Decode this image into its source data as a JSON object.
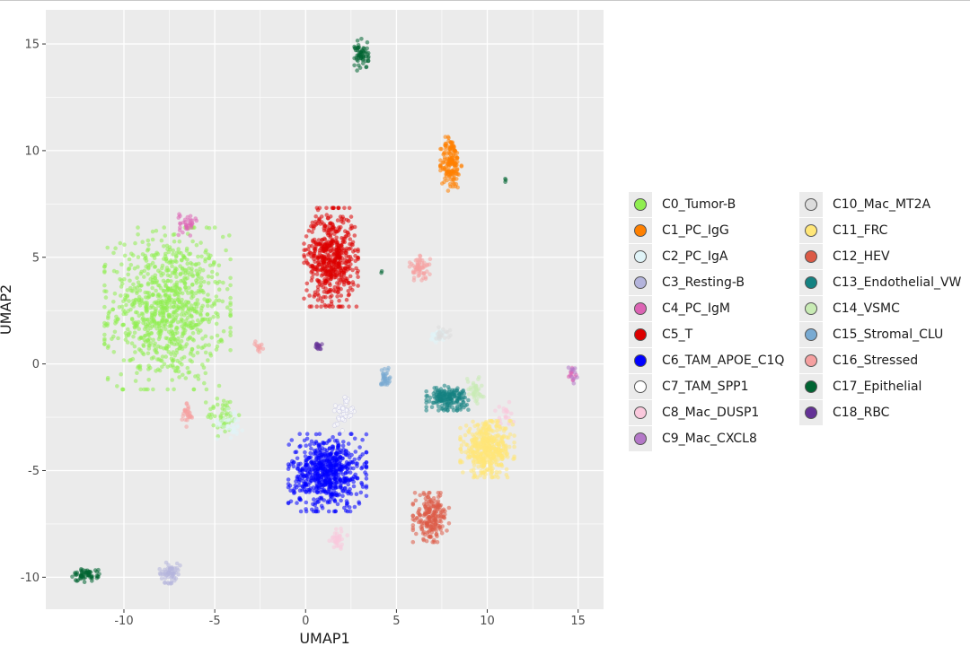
{
  "chart_data": {
    "type": "scatter",
    "xlabel": "UMAP1",
    "ylabel": "UMAP2",
    "xlim": [
      -14.3,
      16.4
    ],
    "ylim": [
      -11.5,
      16.6
    ],
    "x_ticks": [
      -10,
      -5,
      0,
      5,
      10,
      15
    ],
    "y_ticks": [
      -10,
      -5,
      0,
      5,
      10,
      15
    ],
    "x_tick_labels": [
      "-10",
      "-5",
      "0",
      "5",
      "10",
      "15"
    ],
    "y_tick_labels": [
      "-10",
      "-5",
      "0",
      "5",
      "10",
      "15"
    ],
    "background": "#ebebeb",
    "grid": true,
    "legend_position": "right",
    "series": [
      {
        "name": "C0_Tumor-B",
        "color": "#90EE50",
        "clusters": [
          {
            "cx": -7.6,
            "cy": 2.6,
            "sx": 2.1,
            "sy": 2.3,
            "n": 900
          },
          {
            "cx": -4.5,
            "cy": -2.4,
            "sx": 0.6,
            "sy": 0.6,
            "n": 50
          }
        ]
      },
      {
        "name": "C1_PC_IgG",
        "color": "#FF8000",
        "clusters": [
          {
            "cx": 8.0,
            "cy": 9.4,
            "sx": 0.35,
            "sy": 0.8,
            "n": 160
          }
        ]
      },
      {
        "name": "C2_PC_IgA",
        "color": "#E0F4F8",
        "clusters": [
          {
            "cx": 7.3,
            "cy": 1.3,
            "sx": 0.3,
            "sy": 0.2,
            "n": 25
          },
          {
            "cx": -4.1,
            "cy": -2.7,
            "sx": 0.5,
            "sy": 0.5,
            "n": 40
          }
        ]
      },
      {
        "name": "C3_Resting-B",
        "color": "#B4B4DC",
        "clusters": [
          {
            "cx": -7.5,
            "cy": -9.8,
            "sx": 0.4,
            "sy": 0.3,
            "n": 60
          }
        ]
      },
      {
        "name": "C4_PC_IgM",
        "color": "#DC64B4",
        "clusters": [
          {
            "cx": -6.5,
            "cy": 6.6,
            "sx": 0.3,
            "sy": 0.35,
            "n": 35
          },
          {
            "cx": 14.7,
            "cy": -0.6,
            "sx": 0.15,
            "sy": 0.25,
            "n": 12
          }
        ]
      },
      {
        "name": "C5_T",
        "color": "#DC0000",
        "clusters": [
          {
            "cx": 1.4,
            "cy": 5.0,
            "sx": 0.9,
            "sy": 1.4,
            "n": 550
          }
        ]
      },
      {
        "name": "C6_TAM_APOE_C1Q",
        "color": "#0000FF",
        "clusters": [
          {
            "cx": 1.2,
            "cy": -5.1,
            "sx": 1.3,
            "sy": 1.1,
            "n": 650
          }
        ]
      },
      {
        "name": "C7_TAM_SPP1",
        "color": "#FFFFFF",
        "clusters": [
          {
            "cx": 2.0,
            "cy": -2.3,
            "sx": 0.4,
            "sy": 0.5,
            "n": 40
          }
        ]
      },
      {
        "name": "C8_Mac_DUSP1",
        "color": "#FAC8DC",
        "clusters": [
          {
            "cx": 1.8,
            "cy": -8.2,
            "sx": 0.3,
            "sy": 0.3,
            "n": 35
          },
          {
            "cx": 10.9,
            "cy": -2.4,
            "sx": 0.4,
            "sy": 0.4,
            "n": 20
          }
        ]
      },
      {
        "name": "C9_Mac_CXCL8",
        "color": "#B478C8",
        "clusters": [
          {
            "cx": 14.7,
            "cy": -0.5,
            "sx": 0.15,
            "sy": 0.25,
            "n": 10
          }
        ]
      },
      {
        "name": "C10_Mac_MT2A",
        "color": "#DCDCDC",
        "clusters": [
          {
            "cx": 7.5,
            "cy": 1.4,
            "sx": 0.3,
            "sy": 0.2,
            "n": 20
          }
        ]
      },
      {
        "name": "C11_FRC",
        "color": "#FFE678",
        "clusters": [
          {
            "cx": 10.0,
            "cy": -4.0,
            "sx": 0.9,
            "sy": 0.8,
            "n": 450
          }
        ]
      },
      {
        "name": "C12_HEV",
        "color": "#DC5A46",
        "clusters": [
          {
            "cx": 6.9,
            "cy": -7.2,
            "sx": 0.6,
            "sy": 0.7,
            "n": 200
          }
        ]
      },
      {
        "name": "C13_Endothelial_VW",
        "color": "#148282",
        "clusters": [
          {
            "cx": 7.8,
            "cy": -1.6,
            "sx": 0.7,
            "sy": 0.35,
            "n": 180
          }
        ]
      },
      {
        "name": "C14_VSMC",
        "color": "#C8EBB4",
        "clusters": [
          {
            "cx": 9.3,
            "cy": -1.2,
            "sx": 0.3,
            "sy": 0.4,
            "n": 40
          }
        ]
      },
      {
        "name": "C15_Stromal_CLU",
        "color": "#78AAD2",
        "clusters": [
          {
            "cx": 4.4,
            "cy": -0.7,
            "sx": 0.15,
            "sy": 0.4,
            "n": 35
          }
        ]
      },
      {
        "name": "C16_Stressed",
        "color": "#F5A0A0",
        "clusters": [
          {
            "cx": 6.3,
            "cy": 4.5,
            "sx": 0.35,
            "sy": 0.35,
            "n": 60
          },
          {
            "cx": -6.5,
            "cy": -2.4,
            "sx": 0.2,
            "sy": 0.4,
            "n": 30
          },
          {
            "cx": -2.6,
            "cy": 0.8,
            "sx": 0.2,
            "sy": 0.2,
            "n": 12
          }
        ]
      },
      {
        "name": "C17_Epithelial",
        "color": "#006432",
        "clusters": [
          {
            "cx": 3.1,
            "cy": 14.5,
            "sx": 0.25,
            "sy": 0.45,
            "n": 60
          },
          {
            "cx": -12.1,
            "cy": -9.9,
            "sx": 0.45,
            "sy": 0.2,
            "n": 60
          },
          {
            "cx": 11.0,
            "cy": 8.6,
            "sx": 0.05,
            "sy": 0.05,
            "n": 3
          },
          {
            "cx": 4.2,
            "cy": 4.3,
            "sx": 0.05,
            "sy": 0.05,
            "n": 2
          }
        ]
      },
      {
        "name": "C18_RBC",
        "color": "#643296",
        "clusters": [
          {
            "cx": 0.7,
            "cy": 0.8,
            "sx": 0.15,
            "sy": 0.12,
            "n": 15
          }
        ]
      }
    ]
  }
}
